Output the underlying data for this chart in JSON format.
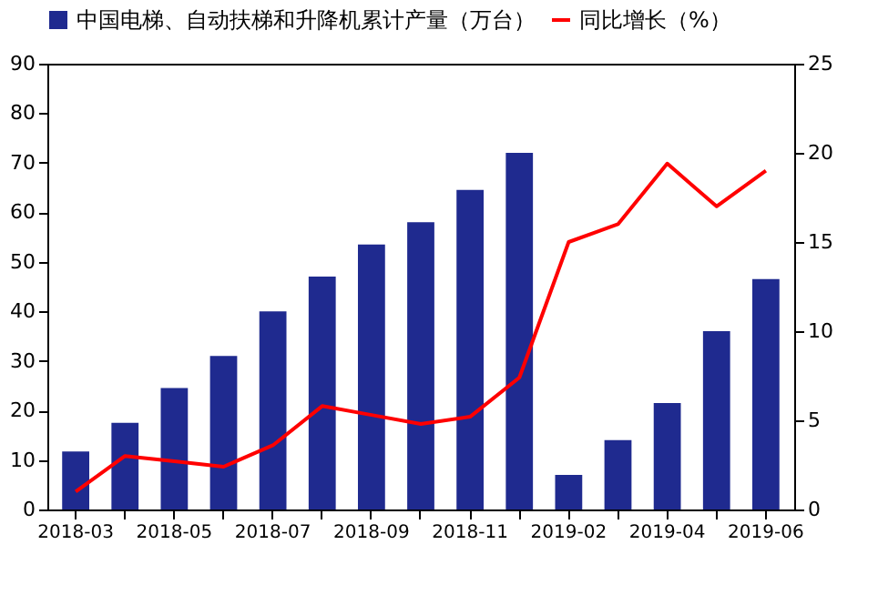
{
  "chart_data": {
    "type": "bar",
    "categories": [
      "2018-03",
      null,
      "2018-05",
      null,
      "2018-07",
      null,
      "2018-09",
      null,
      "2018-11",
      null,
      "2019-02",
      null,
      "2019-04",
      null,
      "2019-06"
    ],
    "series": [
      {
        "name": "中国电梯、自动扶梯和升降机累计产量（万台）",
        "color": "#1f2a8f",
        "values": [
          11.7,
          17.5,
          24.5,
          31,
          40,
          47,
          53.5,
          58,
          64.5,
          72,
          7,
          14,
          21.5,
          36,
          46.5
        ]
      },
      {
        "name": "同比增长（%）",
        "type": "line",
        "axis": "y2",
        "color": "#ff0000",
        "values": [
          1.0,
          3.0,
          2.7,
          2.4,
          3.6,
          5.8,
          5.3,
          4.8,
          5.2,
          7.4,
          15,
          16,
          19.4,
          17,
          19
        ]
      }
    ],
    "ylim": [
      0,
      90
    ],
    "yticks": [
      0,
      10,
      20,
      30,
      40,
      50,
      60,
      70,
      80,
      90
    ],
    "y2lim": [
      0,
      25
    ],
    "y2ticks": [
      0,
      5,
      10,
      15,
      20,
      25
    ],
    "grid": false,
    "legend": "top",
    "marker": "none",
    "line_style": "solid"
  }
}
